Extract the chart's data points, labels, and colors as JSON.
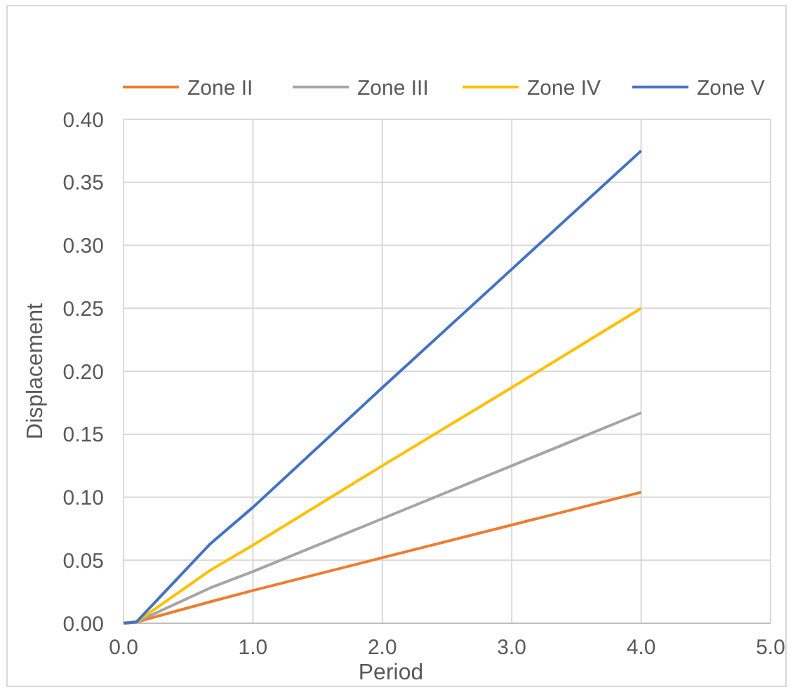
{
  "chart_data": {
    "type": "line",
    "xlabel": "Period",
    "ylabel": "Displacement",
    "x": [
      0,
      0.1,
      0.67,
      1,
      2,
      3,
      4
    ],
    "series": [
      {
        "name": "Zone II",
        "color": "#ed7d31",
        "values": [
          0,
          0.001,
          0.017,
          0.026,
          0.052,
          0.078,
          0.104
        ]
      },
      {
        "name": "Zone III",
        "color": "#a5a5a5",
        "values": [
          0,
          0.001,
          0.028,
          0.041,
          0.083,
          0.125,
          0.167
        ]
      },
      {
        "name": "Zone IV",
        "color": "#ffc000",
        "values": [
          0,
          0.001,
          0.042,
          0.062,
          0.125,
          0.187,
          0.25
        ]
      },
      {
        "name": "Zone V",
        "color": "#4472c4",
        "values": [
          0,
          0.001,
          0.063,
          0.092,
          0.187,
          0.281,
          0.375
        ]
      }
    ],
    "xlim": [
      0,
      5
    ],
    "xticks": [
      {
        "value": 0,
        "label": "0.0"
      },
      {
        "value": 1,
        "label": "1.0"
      },
      {
        "value": 2,
        "label": "2.0"
      },
      {
        "value": 3,
        "label": "3.0"
      },
      {
        "value": 4,
        "label": "4.0"
      },
      {
        "value": 5,
        "label": "5.0"
      }
    ],
    "ylim": [
      0,
      0.4
    ],
    "yticks": [
      {
        "value": 0,
        "label": "0.00"
      },
      {
        "value": 0.05,
        "label": "0.05"
      },
      {
        "value": 0.1,
        "label": "0.10"
      },
      {
        "value": 0.15,
        "label": "0.15"
      },
      {
        "value": 0.2,
        "label": "0.20"
      },
      {
        "value": 0.25,
        "label": "0.25"
      },
      {
        "value": 0.3,
        "label": "0.30"
      },
      {
        "value": 0.35,
        "label": "0.35"
      },
      {
        "value": 0.4,
        "label": "0.40"
      }
    ],
    "grid": true,
    "legend": "top",
    "marker": "none",
    "line_style": "solid"
  }
}
